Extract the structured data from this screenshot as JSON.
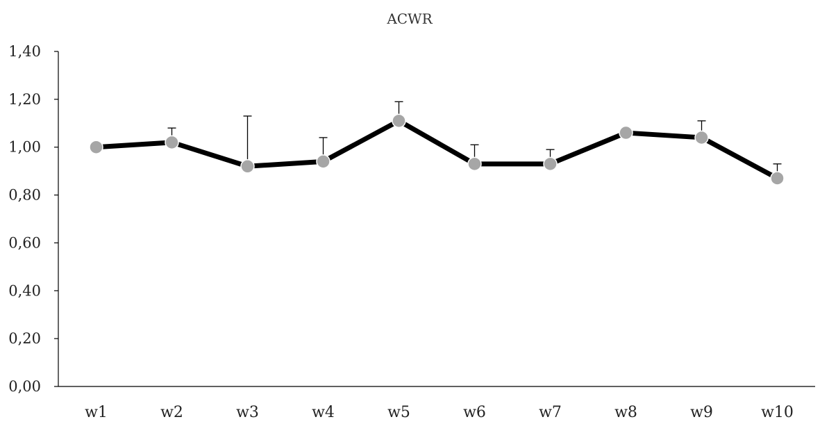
{
  "chart_data": {
    "type": "line",
    "title": "ACWR",
    "xlabel": "",
    "ylabel": "",
    "categories": [
      "w1",
      "w2",
      "w3",
      "w4",
      "w5",
      "w6",
      "w7",
      "w8",
      "w9",
      "w10"
    ],
    "series": [
      {
        "values": [
          1.0,
          1.02,
          0.92,
          0.94,
          1.11,
          0.93,
          0.93,
          1.06,
          1.04,
          0.87
        ],
        "error_upper": [
          0.0,
          0.06,
          0.21,
          0.1,
          0.08,
          0.08,
          0.06,
          0.0,
          0.07,
          0.06
        ]
      }
    ],
    "ylim": [
      0,
      1.4
    ],
    "yticks": [
      0,
      0.2,
      0.4,
      0.6,
      0.8,
      1.0,
      1.2,
      1.4
    ],
    "ytick_labels": [
      "0,00",
      "0,20",
      "0,40",
      "0,60",
      "0,80",
      "1,00",
      "1,20",
      "1,40"
    ],
    "grid": false,
    "colors": {
      "line": "#000000",
      "marker": "#a6a6a6",
      "error": "#000000",
      "axis": "#000000"
    }
  }
}
